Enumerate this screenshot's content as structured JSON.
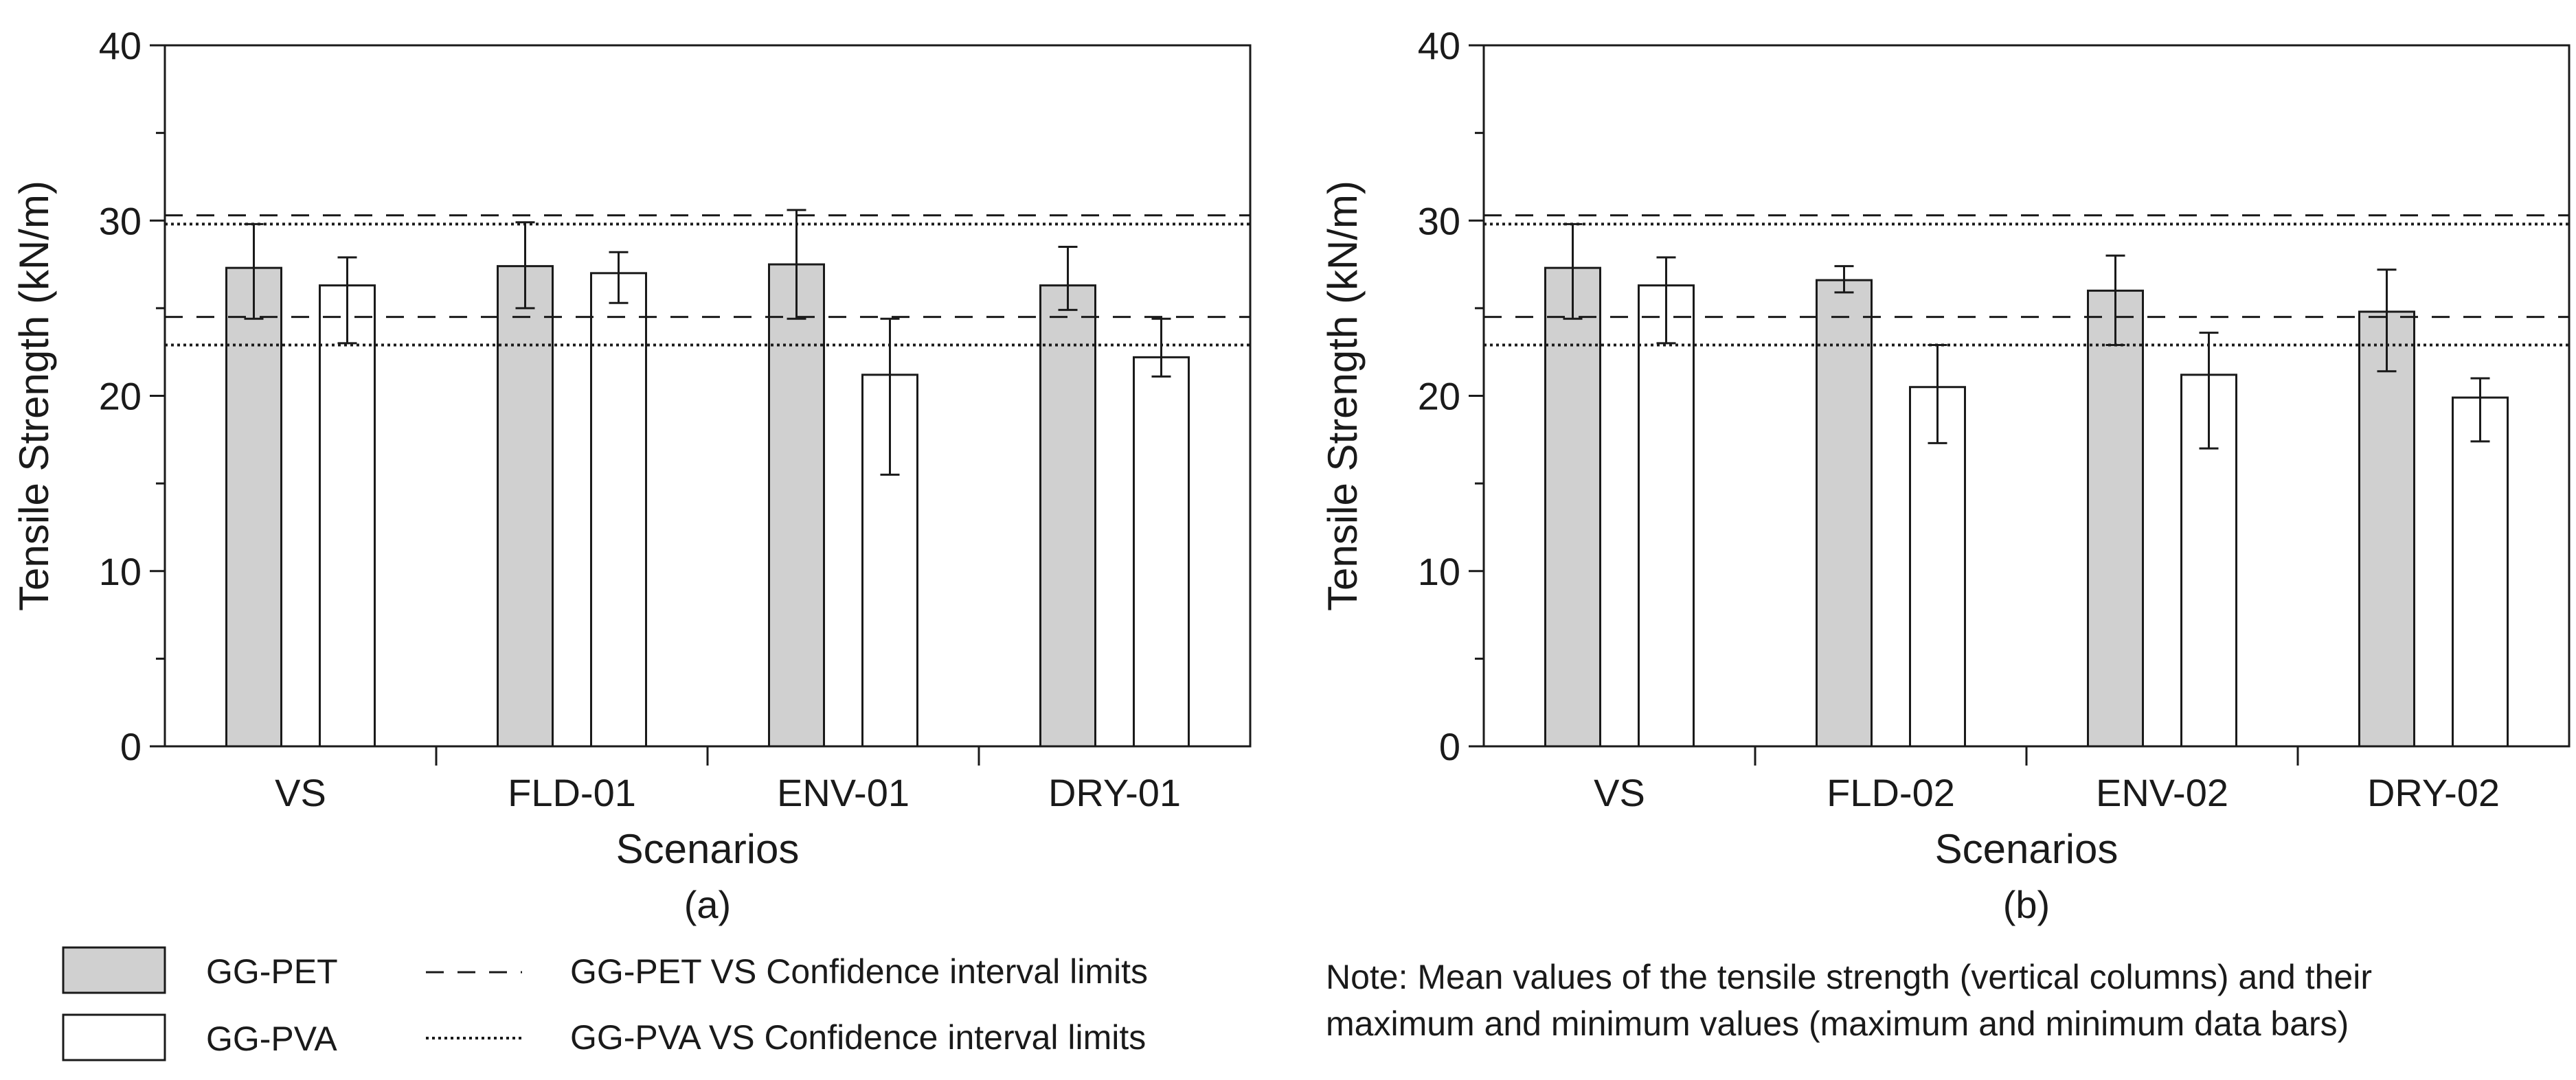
{
  "chart_data": [
    {
      "type": "bar",
      "panel_label": "(a)",
      "xlabel": "Scenarios",
      "ylabel": "Tensile Strength (kN/m)",
      "ylim": [
        0,
        40
      ],
      "yticks": [
        0,
        10,
        20,
        30,
        40
      ],
      "categories": [
        "VS",
        "FLD-01",
        "ENV-01",
        "DRY-01"
      ],
      "series": [
        {
          "name": "GG-PET",
          "color": "#d0d0d0",
          "values": [
            27.3,
            27.4,
            27.5,
            26.3
          ],
          "max": [
            29.8,
            29.9,
            30.6,
            28.5
          ],
          "min": [
            24.4,
            25.0,
            24.4,
            24.9
          ]
        },
        {
          "name": "GG-PVA",
          "color": "#ffffff",
          "values": [
            26.3,
            27.0,
            21.2,
            22.2
          ],
          "max": [
            27.9,
            28.2,
            24.4,
            24.4
          ],
          "min": [
            23.0,
            25.3,
            15.5,
            21.1
          ]
        }
      ],
      "reference_lines": [
        {
          "series": "GG-PET VS Confidence interval limits",
          "style": "dashed",
          "values": [
            24.5,
            30.3
          ]
        },
        {
          "series": "GG-PVA VS Confidence interval limits",
          "style": "dotted",
          "values": [
            22.9,
            29.8
          ]
        }
      ]
    },
    {
      "type": "bar",
      "panel_label": "(b)",
      "xlabel": "Scenarios",
      "ylabel": "Tensile Strength (kN/m)",
      "ylim": [
        0,
        40
      ],
      "yticks": [
        0,
        10,
        20,
        30,
        40
      ],
      "categories": [
        "VS",
        "FLD-02",
        "ENV-02",
        "DRY-02"
      ],
      "series": [
        {
          "name": "GG-PET",
          "color": "#d0d0d0",
          "values": [
            27.3,
            26.6,
            26.0,
            24.8
          ],
          "max": [
            29.8,
            27.4,
            28.0,
            27.2
          ],
          "min": [
            24.4,
            25.9,
            22.9,
            21.4
          ]
        },
        {
          "name": "GG-PVA",
          "color": "#ffffff",
          "values": [
            26.3,
            20.5,
            21.2,
            19.9
          ],
          "max": [
            27.9,
            22.9,
            23.6,
            21.0
          ],
          "min": [
            23.0,
            17.3,
            17.0,
            17.4
          ]
        }
      ],
      "reference_lines": [
        {
          "series": "GG-PET VS Confidence interval limits",
          "style": "dashed",
          "values": [
            24.5,
            30.3
          ]
        },
        {
          "series": "GG-PVA VS Confidence interval limits",
          "style": "dotted",
          "values": [
            22.9,
            29.8
          ]
        }
      ]
    }
  ],
  "legend": {
    "items": [
      {
        "label": "GG-PET",
        "kind": "bar",
        "color": "#d0d0d0"
      },
      {
        "label": "GG-PVA",
        "kind": "bar",
        "color": "#ffffff"
      },
      {
        "label": "GG-PET VS Confidence interval limits",
        "kind": "dashed-line"
      },
      {
        "label": "GG-PVA VS Confidence interval limits",
        "kind": "dotted-line"
      }
    ]
  },
  "note": {
    "line1": "Note: Mean values of the tensile strength (vertical columns) and their",
    "line2": "maximum and minimum values (maximum and minimum data bars)"
  }
}
